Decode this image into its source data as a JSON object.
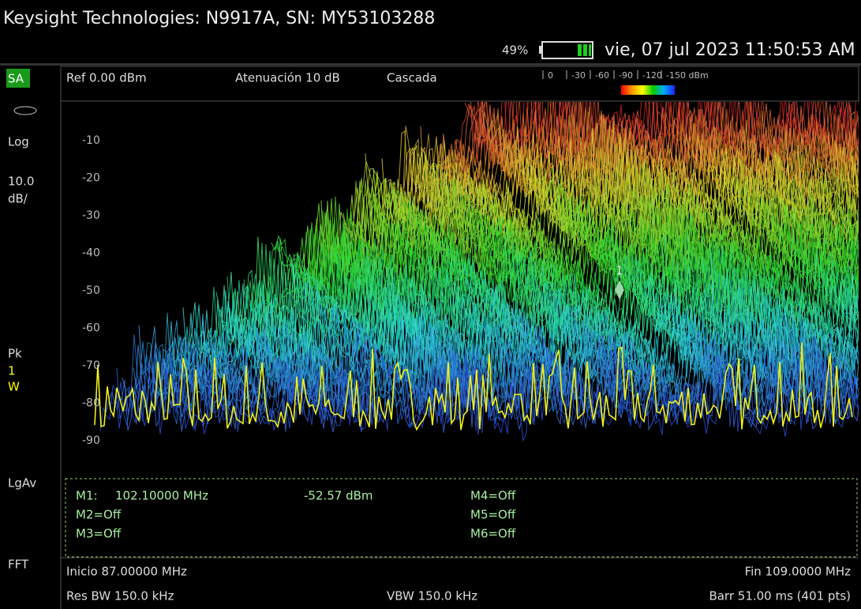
{
  "header": {
    "title": "Keysight Technologies: N9917A, SN: MY53103288",
    "battery": "49%",
    "datetime": "vie, 07 jul 2023 11:50:53 AM"
  },
  "sidebar": [
    "SA",
    "Log",
    "10.0",
    "dB/",
    "Pk",
    "1",
    "W",
    "LgAv",
    "FFT"
  ],
  "info_bar": {
    "ref": "Ref 0.00 dBm",
    "attenuation": "Atenuación 10 dB",
    "mode": "Cascada",
    "scale": [
      "0",
      "-30",
      "-60",
      "-90",
      "-120",
      "-150 dBm"
    ]
  },
  "plot": {
    "y_labels": [
      "-10",
      "-20",
      "-30",
      "-40",
      "-50",
      "-60",
      "-70",
      "-80",
      "-90"
    ],
    "marker_label": "1"
  },
  "markers": {
    "m1_name": "M1:",
    "m1_freq": "102.10000 MHz",
    "m1_level": "-52.57 dBm",
    "others": [
      "M2=Off",
      "M3=Off",
      "M4=Off",
      "M5=Off",
      "M6=Off"
    ]
  },
  "footer": {
    "start": "Inicio 87.00000 MHz",
    "stop": "Fin 109.0000 MHz",
    "rbw": "Res BW 150.0 kHz",
    "vbw": "VBW 150.0 kHz",
    "sweep": "Barr 51.00 ms (401 pts)"
  }
}
